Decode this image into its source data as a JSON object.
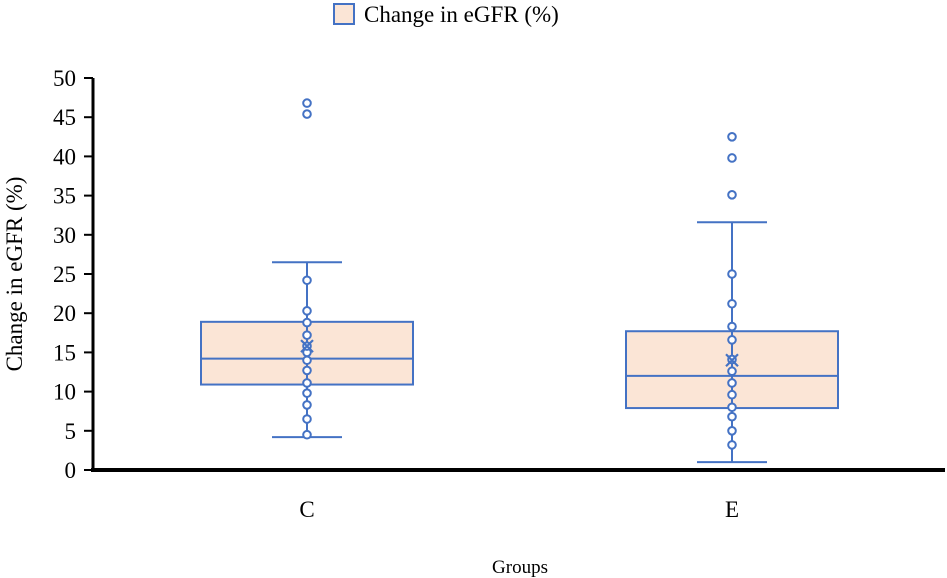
{
  "chart_data": {
    "type": "box",
    "legend": {
      "label": "Change in eGFR (%)",
      "position": "top"
    },
    "xlabel": "Groups",
    "ylabel": "Change in eGFR (%)",
    "ylim": [
      0,
      50
    ],
    "yticks": [
      0,
      5,
      10,
      15,
      20,
      25,
      30,
      35,
      40,
      45,
      50
    ],
    "categories": [
      "C",
      "E"
    ],
    "boxes": [
      {
        "category": "C",
        "whisker_low": 4.2,
        "q1": 10.9,
        "median": 14.2,
        "q3": 18.9,
        "whisker_high": 26.5,
        "mean": 15.8,
        "points": [
          4.5,
          6.5,
          8.3,
          9.8,
          11.1,
          12.7,
          14.0,
          15.0,
          15.8,
          17.2,
          18.8,
          20.3,
          24.2,
          45.4,
          46.8
        ],
        "outliers": [
          45.4,
          46.8
        ]
      },
      {
        "category": "E",
        "whisker_low": 1.0,
        "q1": 7.9,
        "median": 12.0,
        "q3": 17.7,
        "whisker_high": 31.6,
        "mean": 14.0,
        "points": [
          3.2,
          5.0,
          6.8,
          8.0,
          9.6,
          11.1,
          12.6,
          14.1,
          16.6,
          18.3,
          21.2,
          25.0,
          35.1,
          39.8,
          42.5
        ],
        "outliers": [
          35.1,
          39.8,
          42.5
        ]
      }
    ],
    "colors": {
      "box_fill": "#FBE5D6",
      "stroke": "#4472C4",
      "axis": "#000000"
    }
  }
}
